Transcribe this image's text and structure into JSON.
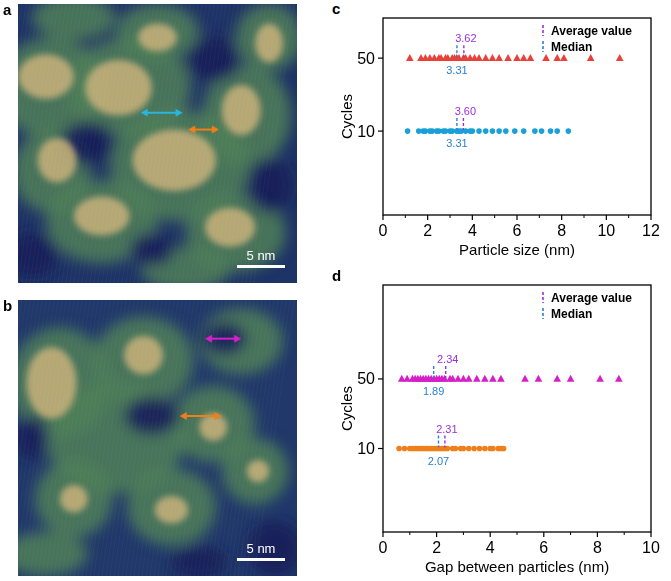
{
  "images": [
    {
      "label": "a",
      "scale_bar": "5 nm"
    },
    {
      "label": "b",
      "scale_bar": "5 nm"
    }
  ],
  "chart_data": [
    {
      "panel": "c",
      "type": "scatter",
      "x_label": "Particle size (nm)",
      "y_label": "Cycles",
      "xlim": [
        0,
        12
      ],
      "xticks": [
        0,
        2,
        4,
        6,
        8,
        10,
        12
      ],
      "ylim": [
        -36,
        72
      ],
      "yticks": [
        10,
        50
      ],
      "legend": "upper right",
      "reference_lines": [
        {
          "name": "Average value",
          "color": "#9b30d9",
          "line_style": "dashed"
        },
        {
          "name": "Median",
          "color": "#2a80d0",
          "line_style": "dashed"
        }
      ],
      "series": [
        {
          "color": "#e8413a",
          "marker": "triangle",
          "average": 3.62,
          "median": 3.31,
          "x": [
            1.2,
            1.7,
            1.9,
            2.1,
            2.3,
            2.5,
            2.6,
            2.8,
            2.9,
            3.1,
            3.2,
            3.3,
            3.4,
            3.6,
            3.7,
            3.9,
            4.1,
            4.3,
            4.6,
            4.9,
            5.2,
            5.6,
            6.0,
            6.3,
            6.6,
            7.3,
            7.8,
            8.1,
            9.3,
            10.6
          ],
          "values": [
            50,
            50,
            50,
            50,
            50,
            50,
            50,
            50,
            50,
            50,
            50,
            50,
            50,
            50,
            50,
            50,
            50,
            50,
            50,
            50,
            50,
            50,
            50,
            50,
            50,
            50,
            50,
            50,
            50,
            50
          ]
        },
        {
          "color": "#1aa0d8",
          "marker": "circle",
          "average": 3.6,
          "median": 3.31,
          "x": [
            1.1,
            1.6,
            1.8,
            1.9,
            2.1,
            2.2,
            2.4,
            2.5,
            2.7,
            2.8,
            3.0,
            3.1,
            3.3,
            3.4,
            3.5,
            3.7,
            3.9,
            4.0,
            4.3,
            4.6,
            4.9,
            5.2,
            5.5,
            5.9,
            6.3,
            6.8,
            7.1,
            7.5,
            7.8,
            8.3
          ],
          "values": [
            10,
            10,
            10,
            10,
            10,
            10,
            10,
            10,
            10,
            10,
            10,
            10,
            10,
            10,
            10,
            10,
            10,
            10,
            10,
            10,
            10,
            10,
            10,
            10,
            10,
            10,
            10,
            10,
            10,
            10
          ]
        }
      ]
    },
    {
      "panel": "d",
      "type": "scatter",
      "x_label": "Gap between particles (nm)",
      "y_label": "Cycles",
      "xlim": [
        0,
        10
      ],
      "xticks": [
        0,
        2,
        4,
        6,
        8,
        10
      ],
      "ylim": [
        -38,
        104
      ],
      "yticks": [
        10,
        50
      ],
      "legend": "upper right",
      "reference_lines": [
        {
          "name": "Average value",
          "color": "#9b30d9",
          "line_style": "dashed"
        },
        {
          "name": "Median",
          "color": "#2a80d0",
          "line_style": "dashed"
        }
      ],
      "series": [
        {
          "color": "#d61fc8",
          "marker": "triangle",
          "average": 2.34,
          "median": 1.89,
          "x": [
            0.7,
            0.9,
            1.1,
            1.2,
            1.3,
            1.4,
            1.5,
            1.6,
            1.7,
            1.8,
            1.9,
            2.0,
            2.1,
            2.2,
            2.3,
            2.5,
            2.6,
            2.8,
            3.0,
            3.2,
            3.5,
            3.8,
            4.1,
            4.4,
            5.3,
            5.8,
            6.5,
            7.0,
            8.1,
            8.8
          ],
          "values": [
            50,
            50,
            50,
            50,
            50,
            50,
            50,
            50,
            50,
            50,
            50,
            50,
            50,
            50,
            50,
            50,
            50,
            50,
            50,
            50,
            50,
            50,
            50,
            50,
            50,
            50,
            50,
            50,
            50,
            50
          ]
        },
        {
          "color": "#f07f1a",
          "marker": "circle",
          "average": 2.31,
          "median": 2.07,
          "x": [
            0.6,
            0.8,
            1.0,
            1.1,
            1.2,
            1.3,
            1.4,
            1.5,
            1.6,
            1.7,
            1.8,
            1.9,
            2.0,
            2.1,
            2.2,
            2.3,
            2.4,
            2.6,
            2.7,
            2.9,
            3.0,
            3.2,
            3.4,
            3.6,
            3.8,
            4.0,
            4.1,
            4.3,
            4.4,
            4.5
          ],
          "values": [
            10,
            10,
            10,
            10,
            10,
            10,
            10,
            10,
            10,
            10,
            10,
            10,
            10,
            10,
            10,
            10,
            10,
            10,
            10,
            10,
            10,
            10,
            10,
            10,
            10,
            10,
            10,
            10,
            10,
            10
          ]
        }
      ]
    }
  ]
}
